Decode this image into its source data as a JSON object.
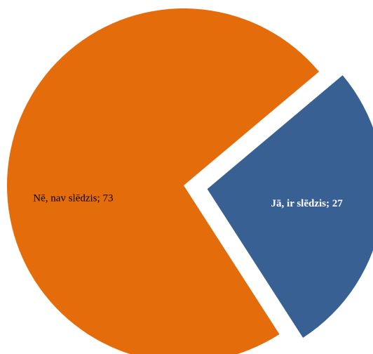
{
  "chart_data": {
    "type": "pie",
    "title": "",
    "slices": [
      {
        "label": "Jā, ir slēdzis; 27",
        "category": "Jā, ir slēdzis",
        "value": 27,
        "color": "#386092",
        "label_color": "#ffffff",
        "label_bold": true,
        "exploded": true
      },
      {
        "label": "Nē, nav slēdzis; 73",
        "category": "Nē, nav slēdzis",
        "value": 73,
        "color": "#e46c0a",
        "label_color": "#000000",
        "label_bold": false,
        "exploded": false
      }
    ],
    "start_angle_deg": -40,
    "legend": "none"
  }
}
